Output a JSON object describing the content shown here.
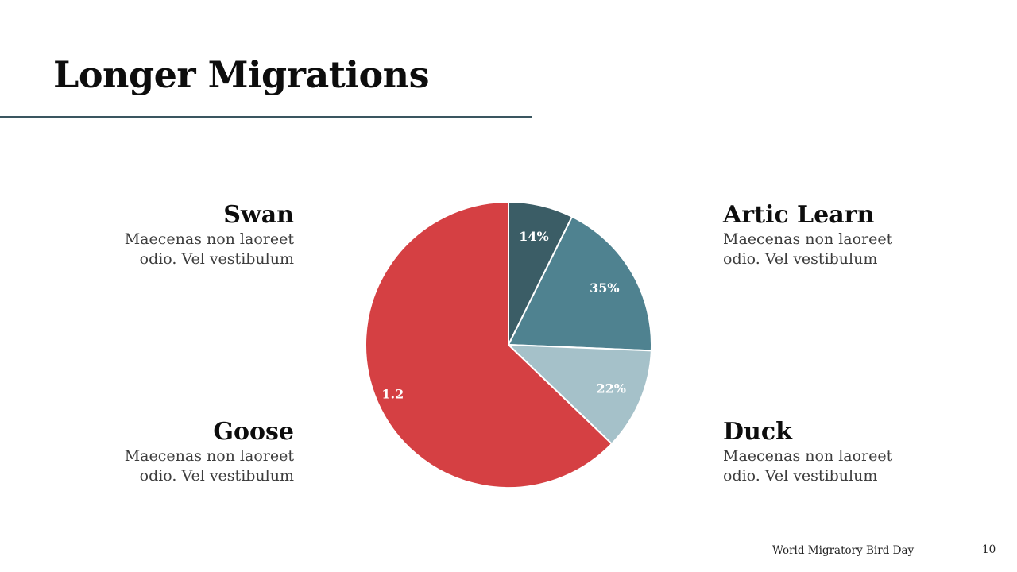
{
  "slide": {
    "title": "Longer Migrations",
    "footer_text": "World Migratory Bird Day",
    "page_number": "10"
  },
  "blocks": {
    "swan": {
      "heading": "Swan",
      "line1": "Maecenas non laoreet",
      "line2": "odio. Vel vestibulum"
    },
    "goose": {
      "heading": "Goose",
      "line1": "Maecenas non laoreet",
      "line2": "odio. Vel vestibulum"
    },
    "artic": {
      "heading": "Artic Learn",
      "line1": "Maecenas non laoreet",
      "line2": "odio. Vel vestibulum"
    },
    "duck": {
      "heading": "Duck",
      "line1": "Maecenas non laoreet",
      "line2": "odio. Vel vestibulum"
    }
  },
  "colors": {
    "title_rule": "#3a5660",
    "slice_border": "#ffffff"
  },
  "chart_data": {
    "type": "pie",
    "start": "12 o'clock",
    "direction": "clockwise",
    "slices": [
      {
        "value": 0.14,
        "label": "14%",
        "color": "#3b5d66"
      },
      {
        "value": 0.35,
        "label": "35%",
        "color": "#4f8290"
      },
      {
        "value": 0.22,
        "label": "22%",
        "color": "#a5c1c9"
      },
      {
        "value": 1.2,
        "label": "1.2",
        "color": "#d54043"
      }
    ]
  }
}
